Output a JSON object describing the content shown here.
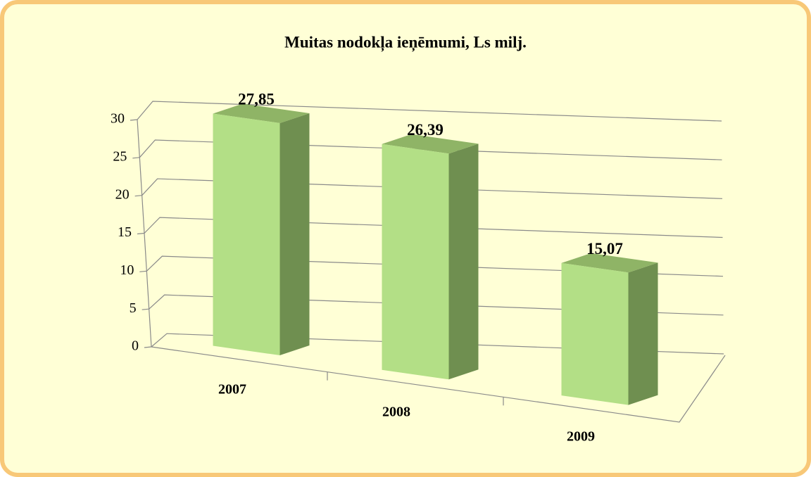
{
  "chart_data": {
    "type": "bar3d",
    "title": "Muitas nodokļa ieņēmumi, Ls milj.",
    "categories": [
      "2007",
      "2008",
      "2009"
    ],
    "values": [
      27.85,
      26.39,
      15.07
    ],
    "value_labels": [
      "27,85",
      "26,39",
      "15,07"
    ],
    "color": "#b3df86",
    "ylim": [
      0,
      30
    ],
    "yticks": [
      0,
      5,
      10,
      15,
      20,
      25,
      30
    ],
    "grid": true
  }
}
